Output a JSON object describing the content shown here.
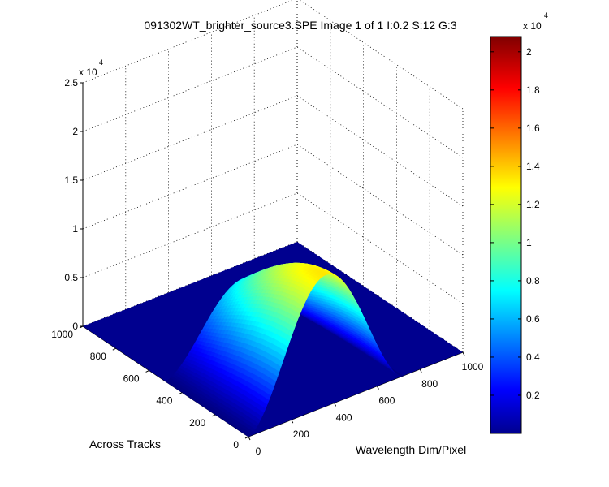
{
  "chart_data": {
    "type": "surface",
    "title": "091302WT_brighter_source3.SPE  Image 1 of 1  I:0.2  S:12  G:3",
    "xlabel": "Wavelength Dim/Pixel",
    "ylabel": "Across Tracks",
    "zlabel": "",
    "x_ticks": [
      "0",
      "200",
      "400",
      "600",
      "800",
      "1000"
    ],
    "y_ticks": [
      "0",
      "200",
      "400",
      "600",
      "800",
      "1000"
    ],
    "z_ticks": [
      "0",
      "0.5",
      "1",
      "1.5",
      "2",
      "2.5"
    ],
    "z_exponent_label": "x 10",
    "z_exponent": "4",
    "xlim": [
      0,
      1000
    ],
    "ylim": [
      0,
      1000
    ],
    "zlim": [
      0,
      25000
    ],
    "grid": true,
    "colormap": "jet",
    "colorbar": {
      "ticks": [
        "0.2",
        "0.4",
        "0.6",
        "0.8",
        "1",
        "1.2",
        "1.4",
        "1.6",
        "1.8",
        "2"
      ],
      "range": [
        0,
        20800
      ],
      "exponent_label": "x 10",
      "exponent": "4"
    },
    "surface": {
      "description_peak_value": 13500,
      "peak_wavelength_pixel": 370,
      "nonzero_track_range": [
        0,
        500
      ],
      "nonzero_wavelength_range": [
        0,
        720
      ],
      "floor_value": 0
    }
  }
}
